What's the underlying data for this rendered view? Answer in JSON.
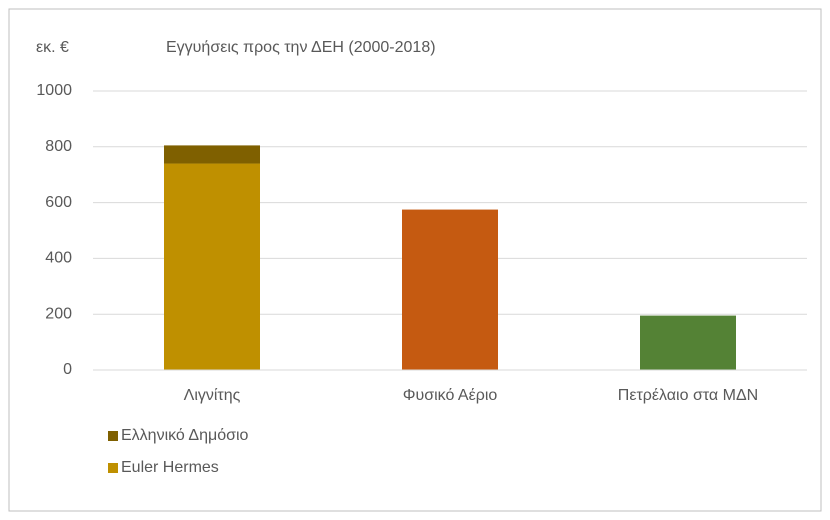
{
  "chart_data": {
    "type": "stacked_bar",
    "title": "Εγγυήσεις προς την ΔΕΗ (2000-2018)",
    "y_label": "εκ. €",
    "categories": [
      "Λιγνίτης",
      "Φυσικό Αέριο",
      "Πετρέλαιο στα ΜΔΝ"
    ],
    "series": [
      {
        "name": "Euler Hermes",
        "color": "#bf9000",
        "point_colors": [
          "#bf9000",
          "#c55a11",
          "#548235"
        ],
        "values": [
          740,
          575,
          195
        ]
      },
      {
        "name": "Ελληνικό Δημόσιο",
        "color": "#7f6000",
        "values": [
          65,
          null,
          null
        ]
      }
    ],
    "ylim": [
      0,
      1000
    ],
    "yticks": [
      0,
      200,
      400,
      600,
      800,
      1000
    ],
    "grid": true
  }
}
